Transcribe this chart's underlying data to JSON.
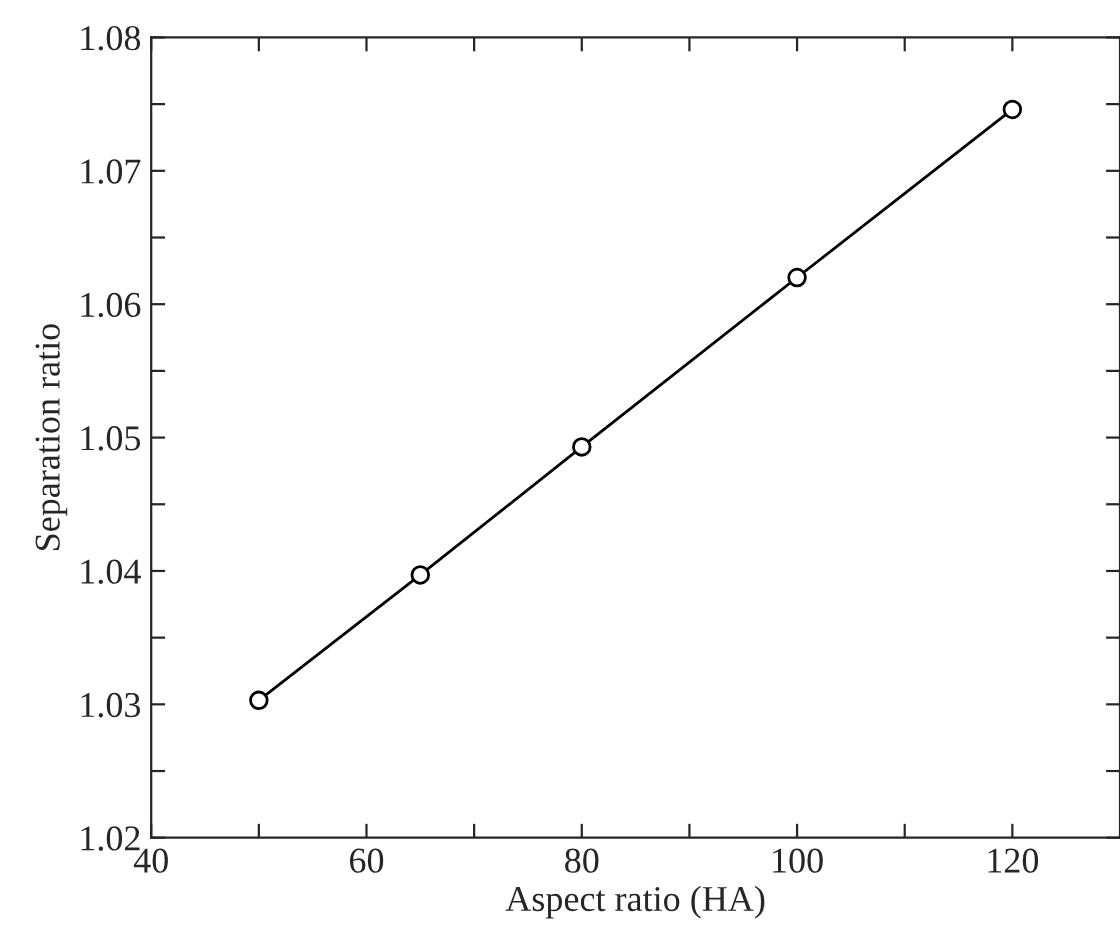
{
  "chart_data": {
    "type": "line",
    "xlabel": "Aspect ratio (HA)",
    "ylabel": "Separation ratio",
    "x": [
      50,
      65,
      80,
      100,
      120
    ],
    "series": [
      {
        "color": "#000000",
        "values": [
          1.0303,
          1.0397,
          1.0493,
          1.062,
          1.0746
        ]
      }
    ],
    "marker": "circle",
    "line_style": "solid",
    "grid": false,
    "xlim": [
      40,
      130
    ],
    "ylim": [
      1.02,
      1.08
    ],
    "xticks": [
      40,
      {
        "value": 50,
        "label": null
      },
      60,
      {
        "value": 70,
        "label": null
      },
      80,
      {
        "value": 90,
        "label": null
      },
      100,
      {
        "value": 110,
        "label": null
      },
      120
    ],
    "yticks": [
      1.02,
      {
        "value": 1.025,
        "label": null
      },
      1.03,
      {
        "value": 1.035,
        "label": null
      },
      1.04,
      {
        "value": 1.045,
        "label": null
      },
      1.05,
      {
        "value": 1.055,
        "label": null
      },
      1.06,
      {
        "value": 1.065,
        "label": null
      },
      1.07,
      {
        "value": 1.075,
        "label": null
      },
      1.08
    ]
  }
}
